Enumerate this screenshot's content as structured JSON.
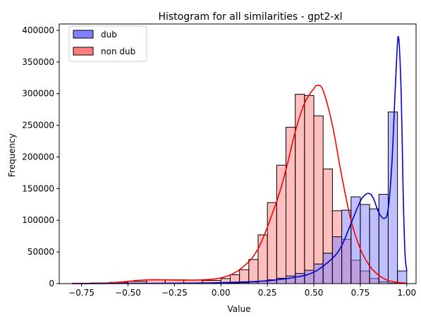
{
  "chart_data": {
    "type": "histogram",
    "title": "Histogram for all similarities - gpt2-xl",
    "xlabel": "Value",
    "ylabel": "Frequency",
    "xlim": [
      -0.87,
      1.05
    ],
    "ylim": [
      0,
      410000
    ],
    "x_ticks": [
      "−0.75",
      "−0.50",
      "−0.25",
      "0.00",
      "0.25",
      "0.50",
      "0.75",
      "1.00"
    ],
    "x_tick_values": [
      -0.75,
      -0.5,
      -0.25,
      0.0,
      0.25,
      0.5,
      0.75,
      1.0
    ],
    "y_ticks": [
      "0",
      "50000",
      "100000",
      "150000",
      "200000",
      "250000",
      "300000",
      "350000",
      "400000"
    ],
    "y_tick_values": [
      0,
      50000,
      100000,
      150000,
      200000,
      250000,
      300000,
      350000,
      400000
    ],
    "grid": false,
    "legend_position": "top-left",
    "bin_edges": [
      -0.8,
      -0.7,
      -0.6,
      -0.5,
      -0.4,
      -0.3,
      -0.2,
      -0.1,
      0.0,
      0.05,
      0.1,
      0.15,
      0.2,
      0.25,
      0.3,
      0.35,
      0.4,
      0.45,
      0.5,
      0.55,
      0.6,
      0.65,
      0.7,
      0.75,
      0.8,
      0.85,
      0.9,
      0.95,
      1.0
    ],
    "series": [
      {
        "name": "non dub",
        "color": "#ff0000",
        "fill": "#ff7f7f",
        "counts": [
          500,
          1000,
          2000,
          3500,
          6000,
          6000,
          5500,
          5000,
          8000,
          14000,
          22000,
          38000,
          77000,
          128000,
          187000,
          247000,
          299000,
          297000,
          265000,
          181000,
          115000,
          70000,
          37000,
          20000,
          8000,
          3000,
          1000,
          500
        ],
        "kde_x": [
          -0.8,
          -0.7,
          -0.6,
          -0.5,
          -0.45,
          -0.4,
          -0.35,
          -0.3,
          -0.2,
          -0.1,
          0.0,
          0.1,
          0.2,
          0.3,
          0.35,
          0.4,
          0.45,
          0.5,
          0.52,
          0.55,
          0.6,
          0.65,
          0.7,
          0.75,
          0.8,
          0.85,
          0.9,
          0.95,
          1.0
        ],
        "kde_y": [
          300,
          400,
          1200,
          3500,
          5000,
          6000,
          6200,
          6000,
          5600,
          6000,
          9000,
          22000,
          55000,
          130000,
          180000,
          240000,
          285000,
          308000,
          313000,
          305000,
          250000,
          170000,
          100000,
          55000,
          28000,
          13000,
          5000,
          2000,
          500
        ]
      },
      {
        "name": "dub",
        "color": "#0000cc",
        "fill": "#7f7fff",
        "counts": [
          0,
          0,
          0,
          0,
          0,
          0,
          0,
          0,
          500,
          1000,
          1500,
          2500,
          4000,
          6000,
          8500,
          12000,
          16000,
          21000,
          31000,
          48000,
          74000,
          116000,
          137000,
          125000,
          118000,
          141000,
          271000,
          20000
        ],
        "kde_x": [
          -0.8,
          -0.5,
          -0.2,
          0.0,
          0.2,
          0.3,
          0.4,
          0.5,
          0.6,
          0.65,
          0.7,
          0.75,
          0.78,
          0.8,
          0.82,
          0.85,
          0.88,
          0.9,
          0.92,
          0.94,
          0.955,
          0.97,
          0.98,
          0.99,
          1.0
        ],
        "kde_y": [
          0,
          300,
          600,
          1500,
          3500,
          6000,
          10000,
          18000,
          40000,
          60000,
          95000,
          130000,
          141000,
          142000,
          135000,
          112000,
          103000,
          118000,
          190000,
          320000,
          390000,
          300000,
          150000,
          50000,
          20000
        ]
      }
    ]
  }
}
